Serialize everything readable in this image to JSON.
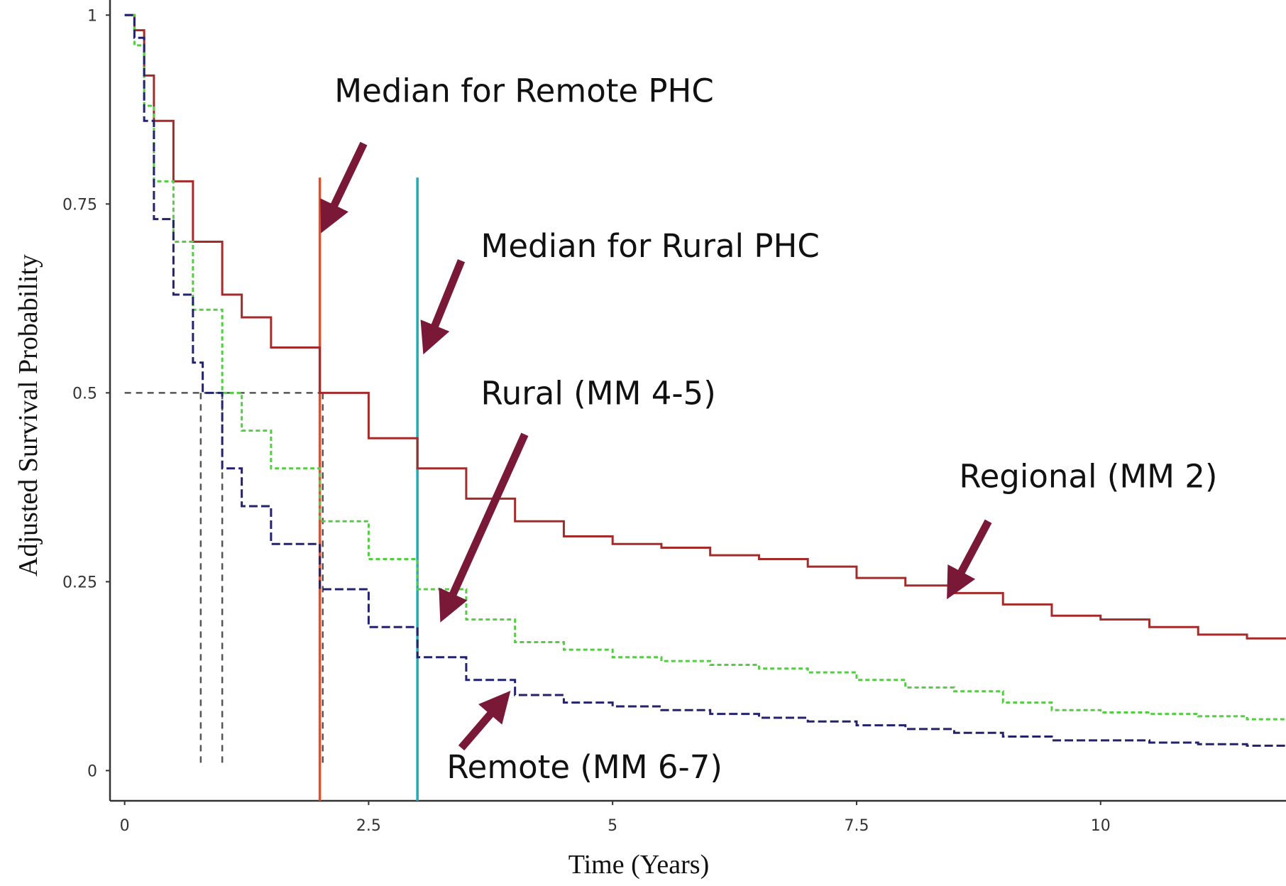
{
  "chart_data": {
    "type": "line",
    "xlabel": "Time (Years)",
    "ylabel": "Adjusted Survival Probability",
    "xlim": [
      -0.15,
      11.9
    ],
    "ylim": [
      -0.04,
      1.02
    ],
    "x_ticks": [
      0,
      2.5,
      5,
      7.5,
      10
    ],
    "x_tick_labels": [
      "0",
      "2.5",
      "5",
      "7.5",
      "10"
    ],
    "y_ticks": [
      0,
      0.25,
      0.5,
      0.75,
      1
    ],
    "y_tick_labels": [
      "0",
      "0.25",
      "0.5",
      "0.75",
      "1"
    ],
    "grid": false,
    "series": [
      {
        "id": "regional",
        "color": "#a52a2a",
        "dash": "solid",
        "x": [
          0,
          0.1,
          0.2,
          0.3,
          0.5,
          0.7,
          1.0,
          1.2,
          1.5,
          2.0,
          2.5,
          3.0,
          3.5,
          4.0,
          4.5,
          5.0,
          5.5,
          6.0,
          6.5,
          7.0,
          7.5,
          8.0,
          8.5,
          9.0,
          9.5,
          10.0,
          10.5,
          11.0,
          11.5,
          11.9
        ],
        "y": [
          1.0,
          0.98,
          0.92,
          0.86,
          0.78,
          0.7,
          0.63,
          0.6,
          0.56,
          0.5,
          0.44,
          0.4,
          0.36,
          0.33,
          0.31,
          0.3,
          0.295,
          0.285,
          0.28,
          0.27,
          0.255,
          0.245,
          0.235,
          0.22,
          0.205,
          0.2,
          0.19,
          0.18,
          0.175,
          0.175
        ]
      },
      {
        "id": "rural",
        "color": "#55cc44",
        "dash": "dashed",
        "x": [
          0,
          0.1,
          0.2,
          0.3,
          0.5,
          0.7,
          1.0,
          1.2,
          1.5,
          2.0,
          2.5,
          3.0,
          3.5,
          4.0,
          4.5,
          5.0,
          5.5,
          6.0,
          6.5,
          7.0,
          7.5,
          8.0,
          8.5,
          9.0,
          9.5,
          10.0,
          10.5,
          11.0,
          11.5,
          11.9
        ],
        "y": [
          1.0,
          0.96,
          0.88,
          0.78,
          0.7,
          0.61,
          0.5,
          0.45,
          0.4,
          0.33,
          0.28,
          0.24,
          0.2,
          0.17,
          0.16,
          0.15,
          0.145,
          0.14,
          0.135,
          0.13,
          0.12,
          0.11,
          0.105,
          0.09,
          0.08,
          0.077,
          0.075,
          0.072,
          0.068,
          0.068
        ]
      },
      {
        "id": "remote",
        "color": "#22226e",
        "dash": "dashed",
        "x": [
          0,
          0.1,
          0.2,
          0.3,
          0.5,
          0.7,
          0.8,
          1.0,
          1.2,
          1.5,
          2.0,
          2.5,
          3.0,
          3.5,
          4.0,
          4.5,
          5.0,
          5.5,
          6.0,
          6.5,
          7.0,
          7.5,
          8.0,
          8.5,
          9.0,
          9.5,
          10.0,
          10.5,
          11.0,
          11.5,
          11.9
        ],
        "y": [
          1.0,
          0.97,
          0.86,
          0.73,
          0.63,
          0.54,
          0.5,
          0.4,
          0.35,
          0.3,
          0.24,
          0.19,
          0.15,
          0.12,
          0.1,
          0.09,
          0.085,
          0.08,
          0.075,
          0.07,
          0.065,
          0.06,
          0.055,
          0.05,
          0.045,
          0.04,
          0.04,
          0.037,
          0.035,
          0.033,
          0.033
        ]
      }
    ],
    "median_lines": [
      {
        "x": 2.0,
        "color": "#f04a24"
      },
      {
        "x": 3.0,
        "color": "#1aaeb8"
      }
    ],
    "median_guides": {
      "y": 0.5,
      "x_values": [
        0.78,
        1.0,
        2.03
      ],
      "color": "#555555"
    },
    "annotations": [
      {
        "id": "remote-phc",
        "text": "Median for Remote PHC",
        "x": 2.15,
        "y": 0.885
      },
      {
        "id": "rural-phc",
        "text": "Median for Rural PHC",
        "x": 3.65,
        "y": 0.68
      },
      {
        "id": "rural",
        "text": "Rural (MM 4-5)",
        "x": 3.65,
        "y": 0.485
      },
      {
        "id": "regional",
        "text": "Regional (MM 2)",
        "x": 8.55,
        "y": 0.375
      },
      {
        "id": "remote",
        "text": "Remote (MM 6-7)",
        "x": 3.3,
        "y": -0.01
      }
    ],
    "arrows": [
      {
        "id": "remote-phc-arrow",
        "from": [
          2.45,
          0.83
        ],
        "to": [
          2.08,
          0.73
        ],
        "color": "#7a1838"
      },
      {
        "id": "rural-phc-arrow",
        "from": [
          3.45,
          0.675
        ],
        "to": [
          3.12,
          0.57
        ],
        "color": "#7a1838"
      },
      {
        "id": "rural-arrow",
        "from": [
          4.1,
          0.445
        ],
        "to": [
          3.3,
          0.215
        ],
        "color": "#7a1838"
      },
      {
        "id": "regional-arrow",
        "from": [
          8.85,
          0.33
        ],
        "to": [
          8.5,
          0.245
        ],
        "color": "#7a1838"
      },
      {
        "id": "remote-arrow",
        "from": [
          3.45,
          0.03
        ],
        "to": [
          3.85,
          0.09
        ],
        "color": "#7a1838"
      }
    ]
  }
}
